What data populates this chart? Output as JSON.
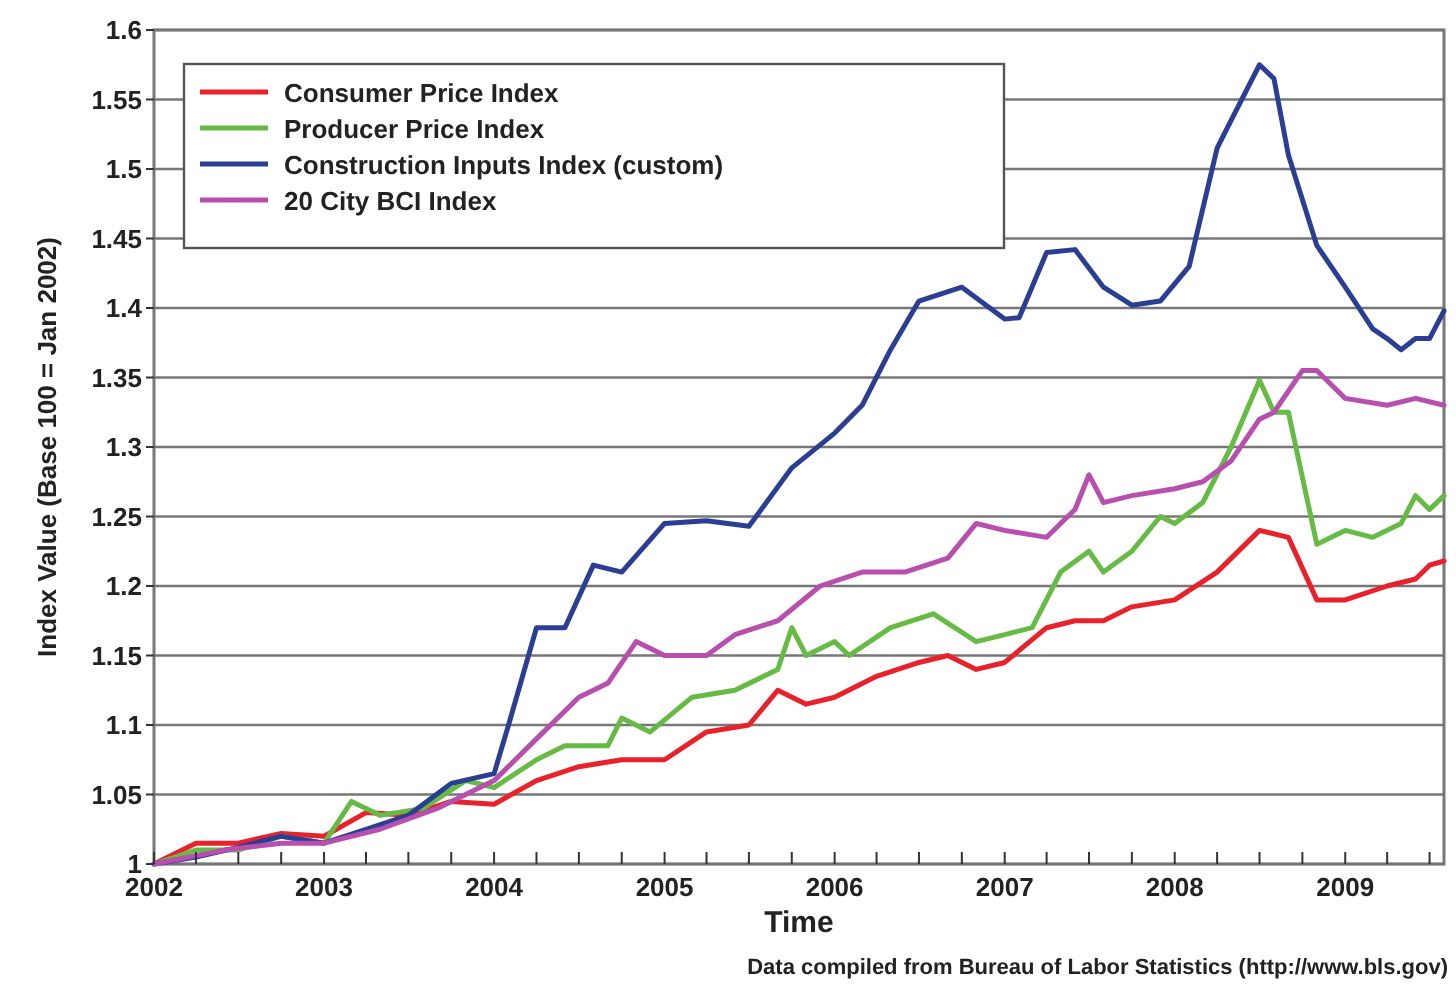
{
  "chart_data": {
    "type": "line",
    "xlabel": "Time",
    "ylabel": "Index Value (Base 100 = Jan 2002)",
    "annotations": [
      "Data compiled from Bureau of Labor Statistics (http://www.bls.gov)"
    ],
    "xlim": [
      "2002-01",
      "2009-08"
    ],
    "xticks": [
      {
        "value": "2002-01",
        "label": "2002"
      },
      {
        "value": "2002-04",
        "label": null
      },
      {
        "value": "2002-07",
        "label": null
      },
      {
        "value": "2002-10",
        "label": null
      },
      {
        "value": "2003-01",
        "label": "2003"
      },
      {
        "value": "2003-04",
        "label": null
      },
      {
        "value": "2003-07",
        "label": null
      },
      {
        "value": "2003-10",
        "label": null
      },
      {
        "value": "2004-01",
        "label": "2004"
      },
      {
        "value": "2004-04",
        "label": null
      },
      {
        "value": "2004-07",
        "label": null
      },
      {
        "value": "2004-10",
        "label": null
      },
      {
        "value": "2005-01",
        "label": "2005"
      },
      {
        "value": "2005-04",
        "label": null
      },
      {
        "value": "2005-07",
        "label": null
      },
      {
        "value": "2005-10",
        "label": null
      },
      {
        "value": "2006-01",
        "label": "2006"
      },
      {
        "value": "2006-04",
        "label": null
      },
      {
        "value": "2006-07",
        "label": null
      },
      {
        "value": "2006-10",
        "label": null
      },
      {
        "value": "2007-01",
        "label": "2007"
      },
      {
        "value": "2007-04",
        "label": null
      },
      {
        "value": "2007-07",
        "label": null
      },
      {
        "value": "2007-10",
        "label": null
      },
      {
        "value": "2008-01",
        "label": "2008"
      },
      {
        "value": "2008-04",
        "label": null
      },
      {
        "value": "2008-07",
        "label": null
      },
      {
        "value": "2008-10",
        "label": null
      },
      {
        "value": "2009-01",
        "label": "2009"
      },
      {
        "value": "2009-04",
        "label": null
      },
      {
        "value": "2009-07",
        "label": null
      }
    ],
    "ylim": [
      1,
      1.6
    ],
    "yticks": [
      1,
      1.05,
      1.1,
      1.15,
      1.2,
      1.25,
      1.3,
      1.35,
      1.4,
      1.45,
      1.5,
      1.55,
      1.6
    ],
    "grid": "y",
    "legend": "top left",
    "line_style": "solid",
    "marker": "none",
    "series": [
      {
        "name": "Consumer Price Index",
        "color": "#e8212a",
        "x": [
          "2002-01",
          "2002-04",
          "2002-07",
          "2002-10",
          "2003-01",
          "2003-04",
          "2003-07",
          "2003-10",
          "2004-01",
          "2004-04",
          "2004-07",
          "2004-10",
          "2005-01",
          "2005-04",
          "2005-07",
          "2005-09",
          "2005-11",
          "2006-01",
          "2006-04",
          "2006-07",
          "2006-09",
          "2006-11",
          "2007-01",
          "2007-04",
          "2007-06",
          "2007-08",
          "2007-10",
          "2008-01",
          "2008-04",
          "2008-07",
          "2008-09",
          "2008-11",
          "2009-01",
          "2009-04",
          "2009-06",
          "2009-07",
          "2009-08"
        ],
        "values": [
          1.0,
          1.015,
          1.015,
          1.022,
          1.02,
          1.037,
          1.035,
          1.045,
          1.043,
          1.06,
          1.07,
          1.075,
          1.075,
          1.095,
          1.1,
          1.125,
          1.115,
          1.12,
          1.135,
          1.145,
          1.15,
          1.14,
          1.145,
          1.17,
          1.175,
          1.175,
          1.185,
          1.19,
          1.21,
          1.24,
          1.235,
          1.19,
          1.19,
          1.2,
          1.205,
          1.215,
          1.218
        ]
      },
      {
        "name": "Producer Price Index",
        "color": "#66bb44",
        "x": [
          "2002-01",
          "2002-04",
          "2002-07",
          "2002-10",
          "2003-01",
          "2003-03",
          "2003-05",
          "2003-08",
          "2003-11",
          "2004-01",
          "2004-04",
          "2004-06",
          "2004-09",
          "2004-10",
          "2004-12",
          "2005-03",
          "2005-06",
          "2005-09",
          "2005-10",
          "2005-11",
          "2006-01",
          "2006-02",
          "2006-05",
          "2006-08",
          "2006-11",
          "2007-01",
          "2007-03",
          "2007-05",
          "2007-07",
          "2007-08",
          "2007-10",
          "2007-12",
          "2008-01",
          "2008-03",
          "2008-05",
          "2008-07",
          "2008-08",
          "2008-09",
          "2008-11",
          "2009-01",
          "2009-03",
          "2009-05",
          "2009-06",
          "2009-07",
          "2009-08"
        ],
        "values": [
          1.0,
          1.01,
          1.01,
          1.02,
          1.015,
          1.045,
          1.035,
          1.04,
          1.06,
          1.055,
          1.075,
          1.085,
          1.085,
          1.105,
          1.095,
          1.12,
          1.125,
          1.14,
          1.17,
          1.15,
          1.16,
          1.15,
          1.17,
          1.18,
          1.16,
          1.165,
          1.17,
          1.21,
          1.225,
          1.21,
          1.225,
          1.25,
          1.245,
          1.26,
          1.3,
          1.348,
          1.325,
          1.325,
          1.23,
          1.24,
          1.235,
          1.245,
          1.265,
          1.255,
          1.265
        ]
      },
      {
        "name": "Construction Inputs Index (custom)",
        "color": "#2a3f94",
        "x": [
          "2002-01",
          "2002-04",
          "2002-07",
          "2002-10",
          "2003-01",
          "2003-04",
          "2003-07",
          "2003-10",
          "2004-01",
          "2004-02",
          "2004-04",
          "2004-06",
          "2004-08",
          "2004-10",
          "2005-01",
          "2005-04",
          "2005-07",
          "2005-10",
          "2006-01",
          "2006-03",
          "2006-05",
          "2006-07",
          "2006-10",
          "2007-01",
          "2007-02",
          "2007-04",
          "2007-06",
          "2007-08",
          "2007-10",
          "2007-12",
          "2008-02",
          "2008-04",
          "2008-05",
          "2008-07",
          "2008-08",
          "2008-09",
          "2008-11",
          "2009-01",
          "2009-03",
          "2009-04",
          "2009-05",
          "2009-06",
          "2009-07",
          "2009-08"
        ],
        "values": [
          1.0,
          1.005,
          1.012,
          1.02,
          1.015,
          1.025,
          1.035,
          1.058,
          1.065,
          1.1,
          1.17,
          1.17,
          1.215,
          1.21,
          1.245,
          1.247,
          1.243,
          1.285,
          1.31,
          1.33,
          1.37,
          1.405,
          1.415,
          1.392,
          1.393,
          1.44,
          1.442,
          1.415,
          1.402,
          1.405,
          1.43,
          1.515,
          1.535,
          1.575,
          1.565,
          1.51,
          1.445,
          1.415,
          1.385,
          1.378,
          1.37,
          1.378,
          1.378,
          1.398
        ]
      },
      {
        "name": "20 City BCI Index",
        "color": "#b84fae",
        "x": [
          "2002-01",
          "2002-06",
          "2002-10",
          "2003-01",
          "2003-05",
          "2003-09",
          "2004-01",
          "2004-04",
          "2004-07",
          "2004-09",
          "2004-11",
          "2005-01",
          "2005-04",
          "2005-06",
          "2005-09",
          "2005-12",
          "2006-03",
          "2006-06",
          "2006-09",
          "2006-11",
          "2007-01",
          "2007-04",
          "2007-05",
          "2007-06",
          "2007-07",
          "2007-08",
          "2007-10",
          "2008-01",
          "2008-03",
          "2008-05",
          "2008-07",
          "2008-08",
          "2008-10",
          "2008-11",
          "2009-01",
          "2009-04",
          "2009-06",
          "2009-08"
        ],
        "values": [
          1.0,
          1.01,
          1.015,
          1.015,
          1.025,
          1.04,
          1.06,
          1.09,
          1.12,
          1.13,
          1.16,
          1.15,
          1.15,
          1.165,
          1.175,
          1.2,
          1.21,
          1.21,
          1.22,
          1.245,
          1.24,
          1.235,
          1.245,
          1.255,
          1.28,
          1.26,
          1.265,
          1.27,
          1.275,
          1.29,
          1.32,
          1.325,
          1.355,
          1.355,
          1.335,
          1.33,
          1.335,
          1.33
        ]
      }
    ]
  }
}
